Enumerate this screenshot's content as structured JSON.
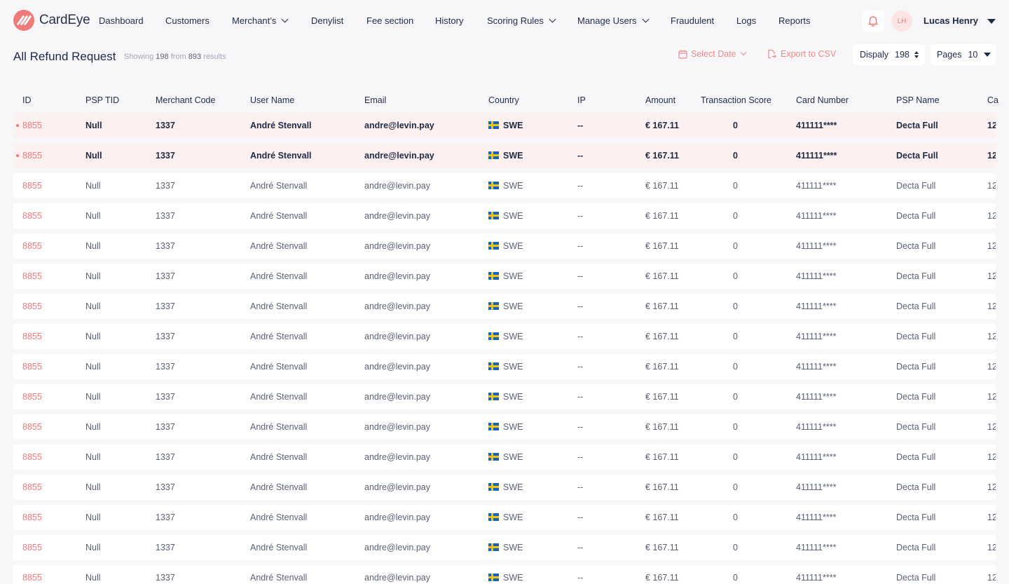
{
  "brand": {
    "name": "CardEye"
  },
  "nav": {
    "items": [
      {
        "label": "Dashboard",
        "dropdown": false
      },
      {
        "label": "Customers",
        "dropdown": false
      },
      {
        "label": "Merchant’s",
        "dropdown": true
      },
      {
        "label": "Denylist",
        "dropdown": false
      },
      {
        "label": "Fee section",
        "dropdown": false
      },
      {
        "label": "History",
        "dropdown": false
      },
      {
        "label": "Scoring Rules",
        "dropdown": true
      },
      {
        "label": "Manage Users",
        "dropdown": true
      },
      {
        "label": "Fraudulent",
        "dropdown": false
      },
      {
        "label": "Logs",
        "dropdown": false
      },
      {
        "label": "Reports",
        "dropdown": false
      }
    ],
    "user_initials": "LH",
    "user_name": "Lucas Henry"
  },
  "toolbar": {
    "title": "All Refund Request",
    "showing_label": "Showing",
    "showing_count": "198",
    "from_label": "from",
    "total": "893",
    "results_label": "results",
    "select_date": "Select Date",
    "export": "Export to CSV",
    "display_label": "Dispaly",
    "display_value": "198",
    "pages_label": "Pages",
    "pages_value": "10"
  },
  "table": {
    "columns": [
      "ID",
      "PSP TID",
      "Merchant Code",
      "User Name",
      "Email",
      "Country",
      "IP",
      "Amount",
      "Transaction Score",
      "Card Number",
      "PSP Name",
      "Ca"
    ],
    "rows": [
      {
        "highlight": true,
        "cells": [
          "8855",
          "Null",
          "1337",
          "André Stenvall",
          "andre@levin.pay",
          "SWE",
          "--",
          "€ 167.11",
          "0",
          "411111****",
          "Decta Full",
          "12"
        ]
      },
      {
        "highlight": true,
        "cells": [
          "8855",
          "Null",
          "1337",
          "André Stenvall",
          "andre@levin.pay",
          "SWE",
          "--",
          "€ 167.11",
          "0",
          "411111****",
          "Decta Full",
          "12"
        ]
      },
      {
        "highlight": false,
        "cells": [
          "8855",
          "Null",
          "1337",
          "André Stenvall",
          "andre@levin.pay",
          "SWE",
          "--",
          "€ 167.11",
          "0",
          "411111****",
          "Decta Full",
          "12"
        ]
      },
      {
        "highlight": false,
        "cells": [
          "8855",
          "Null",
          "1337",
          "André Stenvall",
          "andre@levin.pay",
          "SWE",
          "--",
          "€ 167.11",
          "0",
          "411111****",
          "Decta Full",
          "12"
        ]
      },
      {
        "highlight": false,
        "cells": [
          "8855",
          "Null",
          "1337",
          "André Stenvall",
          "andre@levin.pay",
          "SWE",
          "--",
          "€ 167.11",
          "0",
          "411111****",
          "Decta Full",
          "12"
        ]
      },
      {
        "highlight": false,
        "cells": [
          "8855",
          "Null",
          "1337",
          "André Stenvall",
          "andre@levin.pay",
          "SWE",
          "--",
          "€ 167.11",
          "0",
          "411111****",
          "Decta Full",
          "12"
        ]
      },
      {
        "highlight": false,
        "cells": [
          "8855",
          "Null",
          "1337",
          "André Stenvall",
          "andre@levin.pay",
          "SWE",
          "--",
          "€ 167.11",
          "0",
          "411111****",
          "Decta Full",
          "12"
        ]
      },
      {
        "highlight": false,
        "cells": [
          "8855",
          "Null",
          "1337",
          "André Stenvall",
          "andre@levin.pay",
          "SWE",
          "--",
          "€ 167.11",
          "0",
          "411111****",
          "Decta Full",
          "12"
        ]
      },
      {
        "highlight": false,
        "cells": [
          "8855",
          "Null",
          "1337",
          "André Stenvall",
          "andre@levin.pay",
          "SWE",
          "--",
          "€ 167.11",
          "0",
          "411111****",
          "Decta Full",
          "12"
        ]
      },
      {
        "highlight": false,
        "cells": [
          "8855",
          "Null",
          "1337",
          "André Stenvall",
          "andre@levin.pay",
          "SWE",
          "--",
          "€ 167.11",
          "0",
          "411111****",
          "Decta Full",
          "12"
        ]
      },
      {
        "highlight": false,
        "cells": [
          "8855",
          "Null",
          "1337",
          "André Stenvall",
          "andre@levin.pay",
          "SWE",
          "--",
          "€ 167.11",
          "0",
          "411111****",
          "Decta Full",
          "12"
        ]
      },
      {
        "highlight": false,
        "cells": [
          "8855",
          "Null",
          "1337",
          "André Stenvall",
          "andre@levin.pay",
          "SWE",
          "--",
          "€ 167.11",
          "0",
          "411111****",
          "Decta Full",
          "12"
        ]
      },
      {
        "highlight": false,
        "cells": [
          "8855",
          "Null",
          "1337",
          "André Stenvall",
          "andre@levin.pay",
          "SWE",
          "--",
          "€ 167.11",
          "0",
          "411111****",
          "Decta Full",
          "12"
        ]
      },
      {
        "highlight": false,
        "cells": [
          "8855",
          "Null",
          "1337",
          "André Stenvall",
          "andre@levin.pay",
          "SWE",
          "--",
          "€ 167.11",
          "0",
          "411111****",
          "Decta Full",
          "12"
        ]
      },
      {
        "highlight": false,
        "cells": [
          "8855",
          "Null",
          "1337",
          "André Stenvall",
          "andre@levin.pay",
          "SWE",
          "--",
          "€ 167.11",
          "0",
          "411111****",
          "Decta Full",
          "12"
        ]
      },
      {
        "highlight": false,
        "cells": [
          "8855",
          "Null",
          "1337",
          "André Stenvall",
          "andre@levin.pay",
          "SWE",
          "--",
          "€ 167.11",
          "0",
          "411111****",
          "Decta Full",
          "12"
        ]
      }
    ]
  },
  "colors": {
    "accent": "#ef7a7a",
    "highlight_row": "#fdf0f0",
    "text": "#1f2a44",
    "muted": "#5a6173"
  },
  "icons": {
    "bell": "bell-icon",
    "calendar": "calendar-icon",
    "export": "export-icon",
    "flag": "sweden-flag-icon"
  }
}
